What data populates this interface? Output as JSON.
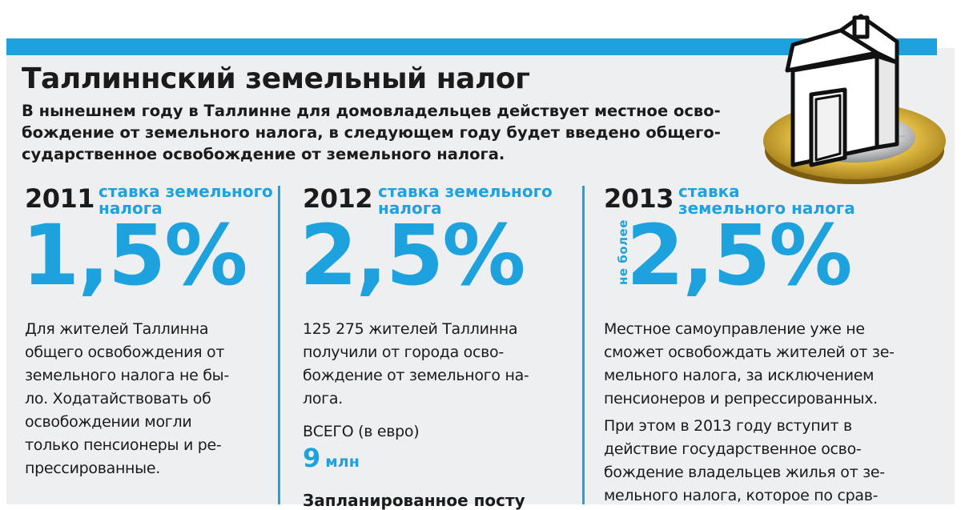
{
  "title": "Таллиннский земельный налог",
  "lead_lines": [
    "В нынешнем году в Таллинне для домовладельцев действует местное осво-",
    "бождение от земельного налога, в следующем году будет введено общего-",
    "сударственное освобождение от земельного налога."
  ],
  "colors": {
    "accent": "#1ea2de",
    "panel": "#eeeff1",
    "text": "#1b1b1b"
  },
  "columns": [
    {
      "year": "2011",
      "rate_label_lines": [
        "ставка земельного",
        "налога"
      ],
      "rate": "1,5%",
      "body_lines": [
        "Для жителей Таллинна",
        "общего освобождения от",
        "земельного налога не бы-",
        "ло. Ходатайствовать об",
        "освобождении могли",
        "только пенсионеры и ре-",
        "прессированные."
      ]
    },
    {
      "year": "2012",
      "rate_label_lines": [
        "ставка земельного",
        "налога"
      ],
      "rate": "2,5%",
      "body_lines": [
        "125 275 жителей Таллинна",
        "получили от города осво-",
        "бождение от земельного на-",
        "лога."
      ],
      "total_label": "ВСЕГО (в евро)",
      "total_value": "9",
      "total_unit": "млн",
      "cut_text": "Запланированное посту"
    },
    {
      "year": "2013",
      "rate_label_lines": [
        "ставка",
        "земельного налога"
      ],
      "qualifier": "не более",
      "rate": "2,5%",
      "body_lines": [
        "Местное самоуправление уже не",
        "сможет освобождать жителей от зе-",
        "мельного налога, за исключением",
        "пенсионеров и репрессированных."
      ],
      "body2_lines": [
        "При этом в 2013 году вступит в",
        "действие государственное осво-",
        "бождение владельцев жилья от зе-",
        "мельного налога, которое по срав-"
      ]
    }
  ]
}
